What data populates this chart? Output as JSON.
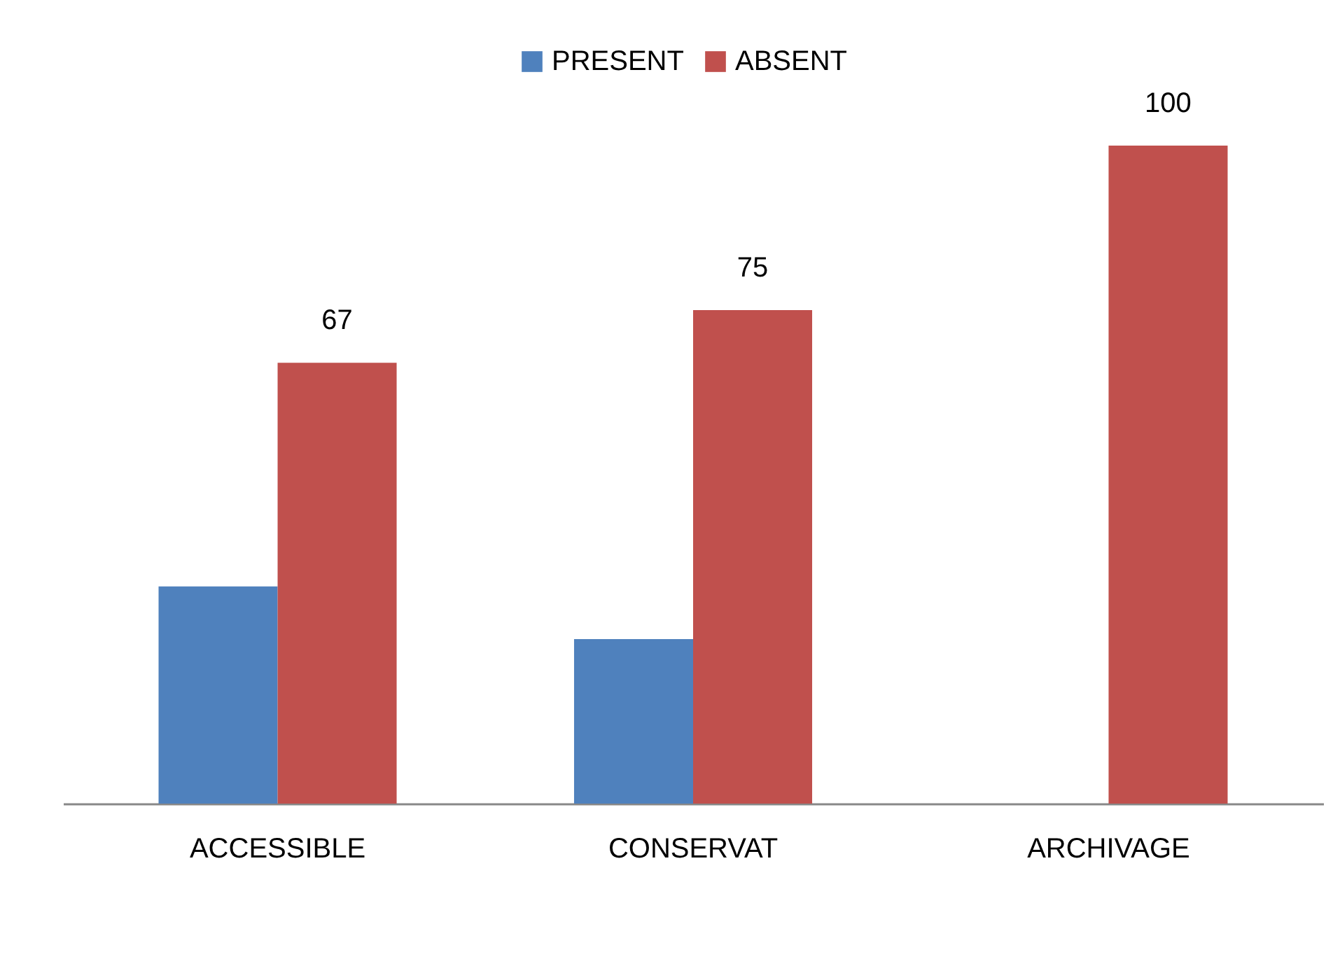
{
  "chart_data": {
    "type": "bar",
    "categories": [
      "ACCESSIBLE",
      "CONSERVAT",
      "ARCHIVAGE"
    ],
    "series": [
      {
        "name": "PRESENT",
        "color": "#4f81bd",
        "values": [
          33,
          25,
          0
        ]
      },
      {
        "name": "ABSENT",
        "color": "#c0504d",
        "values": [
          67,
          75,
          100
        ],
        "value_labels": [
          "67",
          "75",
          "100"
        ]
      }
    ],
    "tick_labels": "x",
    "legend": "top",
    "grid": false
  }
}
